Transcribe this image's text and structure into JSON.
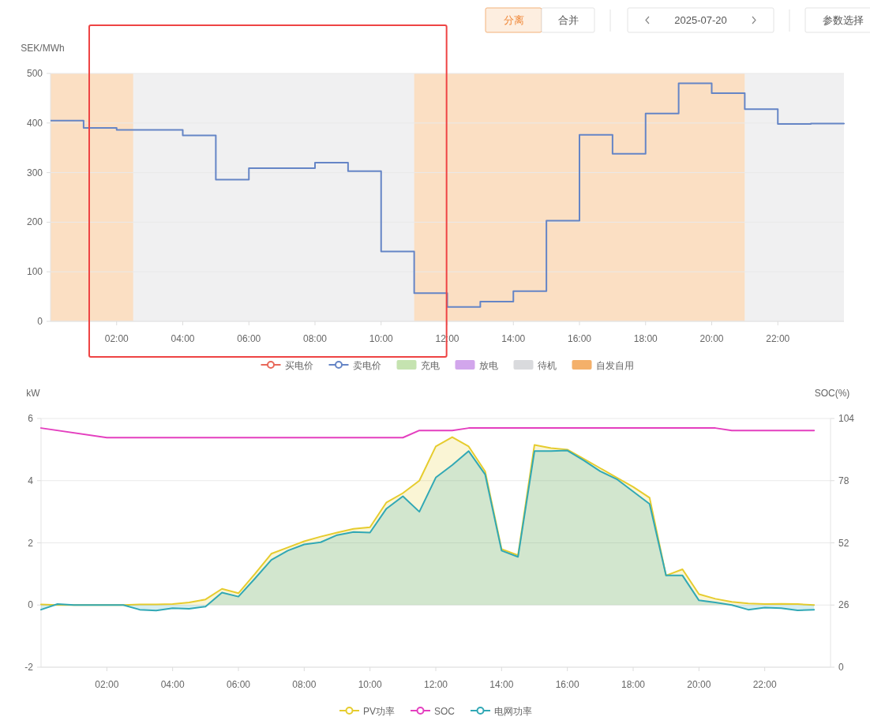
{
  "chart_data": [
    {
      "type": "step",
      "ylabel": "SEK/MWh",
      "annotations": [
        "分离",
        "合并",
        "2025-07-20",
        "参数选择"
      ],
      "x": [
        0,
        1,
        2,
        3,
        4,
        5,
        6,
        7,
        8,
        9,
        10,
        11,
        12,
        13,
        14,
        15,
        16,
        17,
        18,
        19,
        20,
        21,
        22,
        23,
        24
      ],
      "xlim": [
        0,
        24
      ],
      "xticks": [
        {
          "value": 2,
          "label": "02:00"
        },
        {
          "value": 4,
          "label": "04:00"
        },
        {
          "value": 6,
          "label": "06:00"
        },
        {
          "value": 8,
          "label": "08:00"
        },
        {
          "value": 10,
          "label": "10:00"
        },
        {
          "value": 12,
          "label": "12:00"
        },
        {
          "value": 14,
          "label": "14:00"
        },
        {
          "value": 16,
          "label": "16:00"
        },
        {
          "value": 18,
          "label": "18:00"
        },
        {
          "value": 20,
          "label": "20:00"
        },
        {
          "value": 22,
          "label": "22:00"
        }
      ],
      "ylim": [
        0,
        500
      ],
      "yticks": [
        0,
        100,
        200,
        300,
        400,
        500
      ],
      "grid": "y",
      "legend": "bottom",
      "series": [
        {
          "name": "买电价",
          "type": "line",
          "color": "#e8685a",
          "values": [
            null,
            null,
            null,
            null,
            null,
            null,
            null,
            null,
            null,
            null,
            null,
            null,
            null,
            null,
            null,
            null,
            null,
            null,
            null,
            null,
            null,
            null,
            null,
            null,
            null
          ]
        },
        {
          "name": "卖电价",
          "color": "#6585c6",
          "values": [
            405,
            390,
            386,
            386,
            375,
            286,
            309,
            309,
            320,
            303,
            141,
            57,
            29,
            40,
            61,
            203,
            376,
            338,
            419,
            480,
            460,
            428,
            398,
            399,
            400
          ]
        },
        {
          "name": "充电",
          "type": "bar",
          "color": "#c5e3b0",
          "values": [
            null,
            null,
            null,
            null,
            null,
            null,
            null,
            null,
            null,
            null,
            null,
            null,
            null,
            null,
            null,
            null,
            null,
            null,
            null,
            null,
            null,
            null,
            null,
            null,
            null
          ]
        },
        {
          "name": "放电",
          "type": "bar",
          "color": "#d2a6ec",
          "values": [
            null,
            null,
            null,
            null,
            null,
            null,
            null,
            null,
            null,
            null,
            null,
            null,
            null,
            null,
            null,
            null,
            null,
            null,
            null,
            null,
            null,
            null,
            null,
            null,
            null
          ]
        }
      ],
      "bands": [
        {
          "axis": "x",
          "from": 2.5,
          "to": 11,
          "label": "待机",
          "color": "#d9dadd"
        },
        {
          "axis": "x",
          "from": 0,
          "to": 2.5,
          "label": "自发自用",
          "color": "#f4b06a"
        },
        {
          "axis": "x",
          "from": 11,
          "to": 21,
          "color": "#f4b06a"
        },
        {
          "axis": "x",
          "from": 21,
          "to": 24,
          "color": "#d9dadd"
        }
      ]
    },
    {
      "type": "line",
      "ylabel": "kW",
      "y2label": "SOC(%)",
      "x": [
        0,
        0.5,
        1,
        1.5,
        2,
        2.5,
        3,
        3.5,
        4,
        4.5,
        5,
        5.5,
        6,
        6.5,
        7,
        7.5,
        8,
        8.5,
        9,
        9.5,
        10,
        10.5,
        11,
        11.5,
        12,
        12.5,
        13,
        13.5,
        14,
        14.5,
        15,
        15.5,
        16,
        16.5,
        17,
        17.5,
        18,
        18.5,
        19,
        19.5,
        20,
        20.5,
        21,
        21.5,
        22,
        22.5,
        23,
        23.5
      ],
      "xlim": [
        0,
        24
      ],
      "xticks": [
        {
          "value": 2,
          "label": "02:00"
        },
        {
          "value": 4,
          "label": "04:00"
        },
        {
          "value": 6,
          "label": "06:00"
        },
        {
          "value": 8,
          "label": "08:00"
        },
        {
          "value": 10,
          "label": "10:00"
        },
        {
          "value": 12,
          "label": "12:00"
        },
        {
          "value": 14,
          "label": "14:00"
        },
        {
          "value": 16,
          "label": "16:00"
        },
        {
          "value": 18,
          "label": "18:00"
        },
        {
          "value": 20,
          "label": "20:00"
        },
        {
          "value": 22,
          "label": "22:00"
        }
      ],
      "ylim": [
        -2,
        6
      ],
      "yticks": [
        -2,
        0,
        2,
        4,
        6
      ],
      "y2lim": [
        0,
        104
      ],
      "y2ticks": [
        0,
        26,
        52,
        78,
        104
      ],
      "grid": "y",
      "legend": "bottom",
      "series": [
        {
          "name": "PV功率",
          "type": "area",
          "color": "#e6cc2e",
          "values": [
            0.02,
            0.0,
            0.0,
            0.0,
            0.0,
            0.0,
            0.02,
            0.02,
            0.03,
            0.08,
            0.18,
            0.52,
            0.38,
            1.0,
            1.65,
            1.85,
            2.05,
            2.2,
            2.33,
            2.45,
            2.5,
            3.3,
            3.6,
            4.0,
            5.1,
            5.4,
            5.1,
            4.3,
            1.8,
            1.6,
            5.15,
            5.05,
            5.0,
            4.7,
            4.4,
            4.1,
            3.8,
            3.45,
            0.95,
            1.15,
            0.35,
            0.2,
            0.1,
            0.05,
            0.03,
            0.04,
            0.03,
            0.0
          ]
        },
        {
          "name": "SOC",
          "axis": "y2",
          "color": "#e43fbf",
          "x": [
            0,
            2,
            11,
            11.5,
            12.5,
            13,
            20.5,
            21,
            23.5
          ],
          "values": [
            100,
            96,
            96,
            99,
            99,
            100,
            100,
            99,
            99
          ]
        },
        {
          "name": "电网功率",
          "type": "area",
          "color": "#31a8b5",
          "values": [
            -0.15,
            0.03,
            0.0,
            0.0,
            0.0,
            0.0,
            -0.15,
            -0.18,
            -0.1,
            -0.12,
            -0.05,
            0.4,
            0.27,
            0.85,
            1.45,
            1.75,
            1.95,
            2.02,
            2.25,
            2.35,
            2.33,
            3.1,
            3.5,
            3.0,
            4.1,
            4.5,
            4.95,
            4.2,
            1.75,
            1.55,
            4.95,
            4.95,
            4.97,
            4.65,
            4.3,
            4.05,
            3.65,
            3.25,
            0.95,
            0.95,
            0.15,
            0.08,
            0.0,
            -0.15,
            -0.08,
            -0.1,
            -0.17,
            -0.15
          ]
        }
      ]
    }
  ]
}
